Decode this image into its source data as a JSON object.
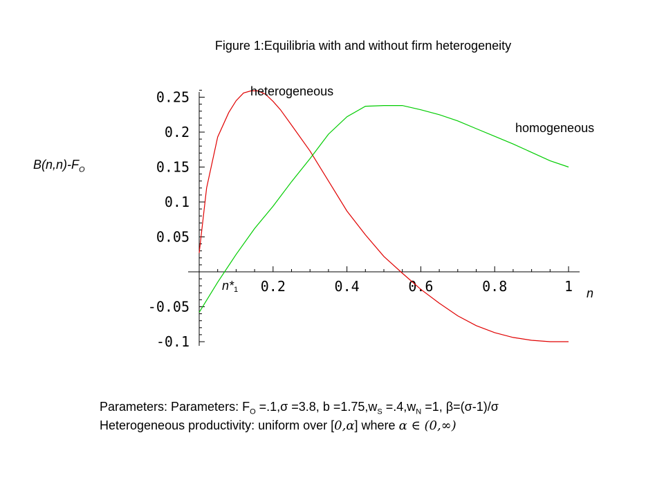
{
  "chart_data": {
    "type": "line",
    "title": "Figure 1:Equilibria with and without firm heterogeneity",
    "xlabel": "n",
    "ylabel": {
      "main": "B(n,n)-F",
      "sub": "O"
    },
    "xlim": [
      0,
      1
    ],
    "ylim": [
      -0.1,
      0.26
    ],
    "xticks": [
      {
        "value": 0.2,
        "label": "0.2"
      },
      {
        "value": 0.4,
        "label": "0.4"
      },
      {
        "value": 0.6,
        "label": "0.6"
      },
      {
        "value": 0.8,
        "label": "0.8"
      },
      {
        "value": 1.0,
        "label": "1"
      }
    ],
    "yticks": [
      {
        "value": 0.25,
        "label": "0.25"
      },
      {
        "value": 0.2,
        "label": "0.2"
      },
      {
        "value": 0.15,
        "label": "0.15"
      },
      {
        "value": 0.1,
        "label": "0.1"
      },
      {
        "value": 0.05,
        "label": "0.05"
      },
      {
        "value": -0.05,
        "label": "-0.05"
      },
      {
        "value": -0.1,
        "label": "-0.1"
      }
    ],
    "grid": false,
    "series": [
      {
        "name": "heterogeneous",
        "color": "#e00000",
        "x": [
          0,
          0.02,
          0.05,
          0.08,
          0.1,
          0.12,
          0.14,
          0.16,
          0.18,
          0.2,
          0.22,
          0.25,
          0.3,
          0.35,
          0.4,
          0.45,
          0.5,
          0.55,
          0.6,
          0.65,
          0.7,
          0.75,
          0.8,
          0.85,
          0.9,
          0.95,
          1.0
        ],
        "y": [
          0.027,
          0.12,
          0.193,
          0.228,
          0.245,
          0.256,
          0.259,
          0.259,
          0.254,
          0.244,
          0.232,
          0.21,
          0.173,
          0.13,
          0.087,
          0.053,
          0.022,
          -0.002,
          -0.025,
          -0.045,
          -0.063,
          -0.077,
          -0.087,
          -0.094,
          -0.098,
          -0.1,
          -0.1
        ]
      },
      {
        "name": "homogeneous",
        "color": "#00cc00",
        "x": [
          0,
          0.05,
          0.1,
          0.15,
          0.2,
          0.25,
          0.3,
          0.35,
          0.4,
          0.45,
          0.5,
          0.55,
          0.6,
          0.65,
          0.7,
          0.75,
          0.8,
          0.85,
          0.9,
          0.95,
          1.0
        ],
        "y": [
          -0.058,
          -0.015,
          0.025,
          0.062,
          0.094,
          0.129,
          0.162,
          0.197,
          0.222,
          0.237,
          0.238,
          0.238,
          0.232,
          0.225,
          0.216,
          0.205,
          0.194,
          0.183,
          0.171,
          0.159,
          0.15
        ]
      }
    ],
    "annotations": {
      "heterogeneous_label": "heterogeneous",
      "homogeneous_label": "homogeneous",
      "nstar": {
        "main": "n*",
        "sub": "1"
      }
    }
  },
  "params": {
    "line1": {
      "t1": "Parameters: Parameters: F",
      "t1_sub": "O",
      "t2": " =.1,σ  =3.8, b =1.75,w",
      "t2_sub": "S",
      "t3": " =.4,w",
      "t3_sub": "N",
      "t4": " =1, β=(σ-1)/σ"
    },
    "line2": {
      "t1": "Heterogeneous  productivity:  uniform  over  [",
      "m1": "0,α",
      "t2": "]   where",
      "m2": "α ∈ (0,∞)"
    }
  }
}
